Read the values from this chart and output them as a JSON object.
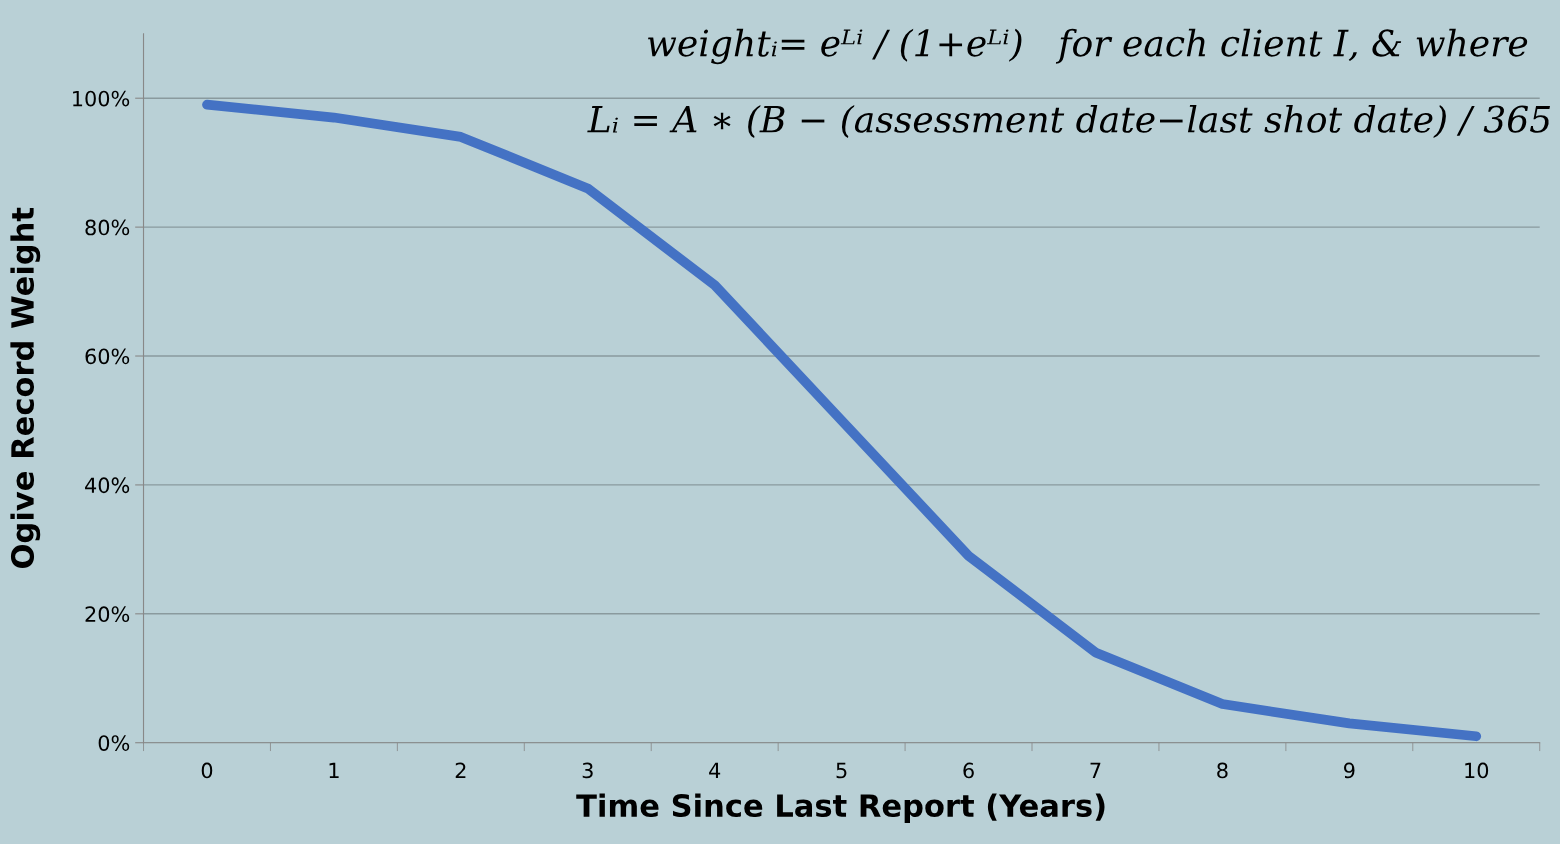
{
  "chart_data": {
    "type": "line",
    "xlabel": "Time Since Last Report (Years)",
    "ylabel": "Ogive Record Weight",
    "categories": [
      "0",
      "1",
      "2",
      "3",
      "4",
      "5",
      "6",
      "7",
      "8",
      "9",
      "10"
    ],
    "series": [
      {
        "color": "#4472c4",
        "values": [
          99,
          97,
          94,
          86,
          71,
          50,
          29,
          14,
          6,
          3,
          1
        ]
      }
    ],
    "ylim": [
      0,
      110
    ],
    "yticks": [
      {
        "value": 0,
        "label": "0%"
      },
      {
        "value": 20,
        "label": "20%"
      },
      {
        "value": 40,
        "label": "40%"
      },
      {
        "value": 60,
        "label": "60%"
      },
      {
        "value": 80,
        "label": "80%"
      },
      {
        "value": 100,
        "label": "100%"
      }
    ],
    "grid": "y",
    "marker": "none",
    "line_style": "solid",
    "legend": false,
    "annotations": [
      "weightᵢ= eᴸⁱ / (1+eᴸⁱ)   for each client I, & where",
      "Lᵢ = A ∗ (B − (assessment date−last shot date) / 365"
    ]
  }
}
